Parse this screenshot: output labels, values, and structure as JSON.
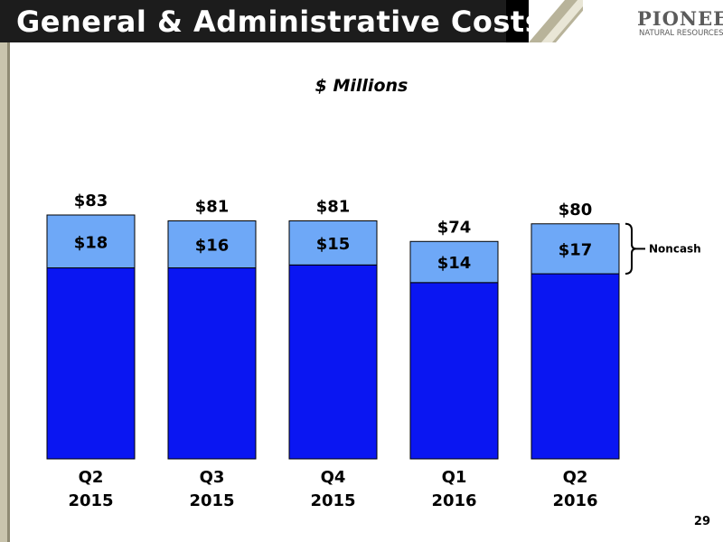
{
  "header": {
    "title": "General & Administrative Costs",
    "logo_main": "PIONEER",
    "logo_sub": "NATURAL RESOURCES"
  },
  "subtitle": "$ Millions",
  "page_number": "29",
  "colors": {
    "cash_bar": "#0a16f2",
    "noncash_bar": "#6ea8f7",
    "bar_stroke": "#000000",
    "header_bg": "#000000"
  },
  "chart_data": {
    "type": "bar",
    "stacked": true,
    "categories": [
      [
        "Q2",
        "2015"
      ],
      [
        "Q3",
        "2015"
      ],
      [
        "Q4",
        "2015"
      ],
      [
        "Q1",
        "2016"
      ],
      [
        "Q2",
        "2016"
      ]
    ],
    "series": [
      {
        "values": [
          65,
          65,
          66,
          60,
          63
        ]
      },
      {
        "name": "Noncash",
        "values": [
          18,
          16,
          15,
          14,
          17
        ]
      }
    ],
    "segment_labels": [
      "$18",
      "$16",
      "$15",
      "$14",
      "$17"
    ],
    "totals": [
      83,
      81,
      81,
      74,
      80
    ],
    "total_labels": [
      "$83",
      "$81",
      "$81",
      "$74",
      "$80"
    ],
    "legend": {
      "text": "Noncash",
      "placement": "right"
    },
    "ylim": [
      0,
      83
    ]
  }
}
